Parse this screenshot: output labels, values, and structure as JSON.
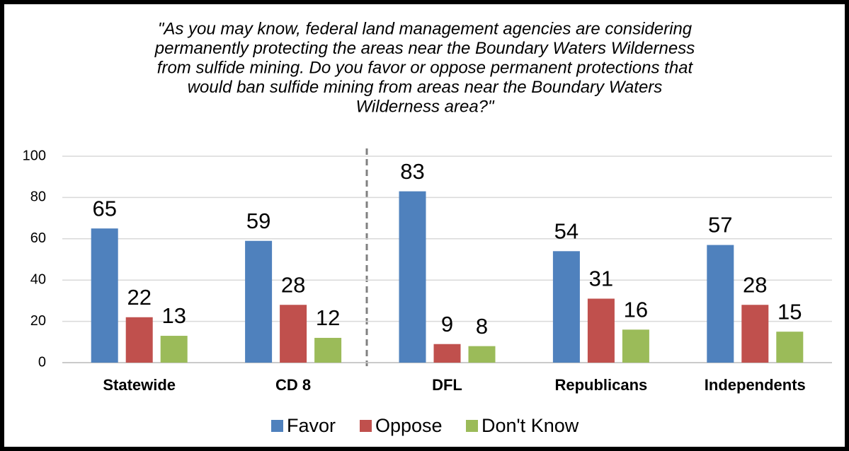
{
  "chart_data": {
    "type": "bar",
    "title": [
      "\"As you may know, federal land management agencies are considering",
      "permanently protecting the areas near the Boundary Waters Wilderness",
      "from sulfide mining. Do you favor or oppose permanent protections that",
      "would ban sulfide mining from areas near the Boundary Waters",
      "Wilderness area?\""
    ],
    "categories": [
      "Statewide",
      "CD 8",
      "DFL",
      "Republicans",
      "Independents"
    ],
    "series": [
      {
        "name": "Favor",
        "color": "#4f81bd",
        "values": [
          65,
          59,
          83,
          54,
          57
        ]
      },
      {
        "name": "Oppose",
        "color": "#c0504d",
        "values": [
          22,
          28,
          9,
          31,
          28
        ]
      },
      {
        "name": "Don't Know",
        "color": "#9bbb59",
        "values": [
          13,
          12,
          8,
          16,
          15
        ]
      }
    ],
    "ylim": [
      0,
      100
    ],
    "yticks": [
      0,
      20,
      40,
      60,
      80,
      100
    ],
    "grid": true,
    "legend": "bottom"
  }
}
